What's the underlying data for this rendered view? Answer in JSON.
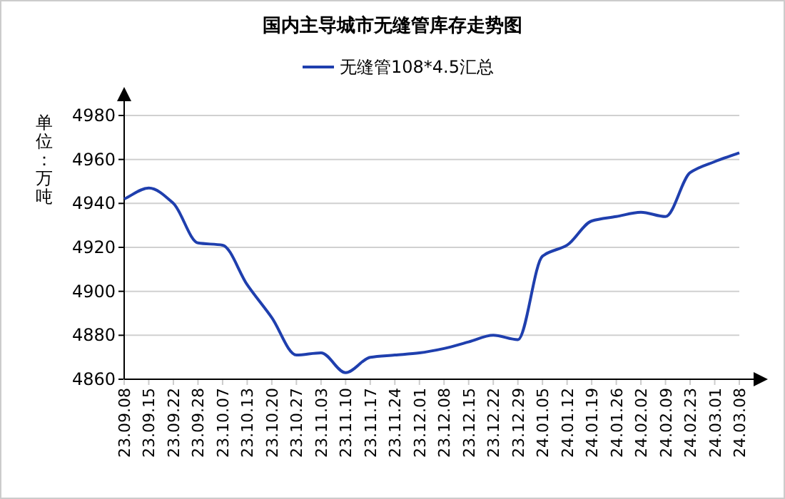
{
  "chart_data": {
    "type": "line",
    "title": "国内主导城市无缝管库存走势图",
    "ylabel": "单位：万吨",
    "categories": [
      "23.09.08",
      "23.09.15",
      "23.09.22",
      "23.09.28",
      "23.10.07",
      "23.10.13",
      "23.10.20",
      "23.10.27",
      "23.11.03",
      "23.11.10",
      "23.11.17",
      "23.11.24",
      "23.12.01",
      "23.12.08",
      "23.12.15",
      "23.12.22",
      "23.12.29",
      "24.01.05",
      "24.01.12",
      "24.01.19",
      "24.01.26",
      "24.02.02",
      "24.02.09",
      "24.02.23",
      "24.03.01",
      "24.03.08"
    ],
    "series": [
      {
        "name": "无缝管108*4.5汇总",
        "color": "#1f3fae",
        "values": [
          4942,
          4947,
          4940,
          4922,
          4921,
          4903,
          4888,
          4871,
          4872,
          4863,
          4870,
          4871,
          4872,
          4874,
          4877,
          4880,
          4878,
          4916,
          4921,
          4932,
          4934,
          4936,
          4934,
          4954,
          4959,
          4963
        ]
      }
    ],
    "ylim": [
      4860,
      4980
    ],
    "yticks": [
      4860,
      4880,
      4900,
      4920,
      4940,
      4960,
      4980
    ],
    "grid": "y",
    "legend": "top",
    "marker": "none",
    "line_style": "solid"
  }
}
